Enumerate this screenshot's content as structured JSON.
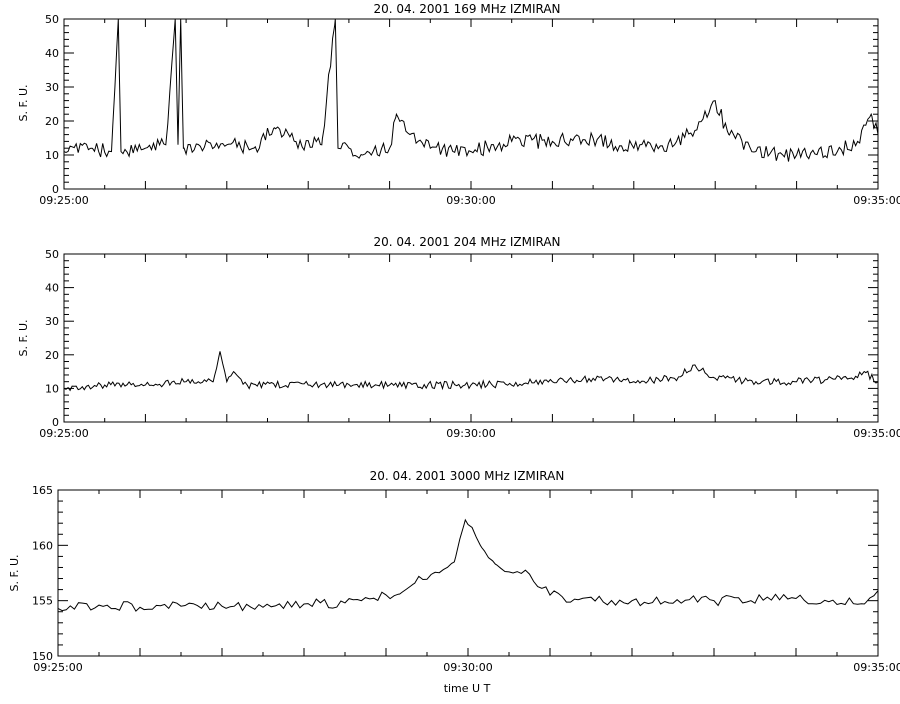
{
  "xlabel": "time  U T",
  "chart_data": [
    {
      "type": "line",
      "title": "20.  04.  2001    169  MHz     IZMIRAN",
      "ylabel": "S. F. U.",
      "xlim": [
        "09:25:00",
        "09:35:00"
      ],
      "ylim": [
        0,
        50
      ],
      "x_ticklabels": [
        "09:25:00",
        "09:30:00",
        "09:35:00"
      ],
      "y_ticklabels": [
        "0",
        "10",
        "20",
        "30",
        "40",
        "50"
      ],
      "grid": false,
      "series": [
        {
          "values": [
            {
              "t": "09:25:00",
              "y": 11
            },
            {
              "t": "09:25:20",
              "y": 12
            },
            {
              "t": "09:25:35",
              "y": 11
            },
            {
              "t": "09:25:40",
              "y": 50
            },
            {
              "t": "09:25:42",
              "y": 11
            },
            {
              "t": "09:26:00",
              "y": 12
            },
            {
              "t": "09:26:15",
              "y": 13
            },
            {
              "t": "09:26:22",
              "y": 50
            },
            {
              "t": "09:26:24",
              "y": 13
            },
            {
              "t": "09:26:26",
              "y": 50
            },
            {
              "t": "09:26:28",
              "y": 12
            },
            {
              "t": "09:27:00",
              "y": 13
            },
            {
              "t": "09:27:20",
              "y": 12
            },
            {
              "t": "09:27:35",
              "y": 18
            },
            {
              "t": "09:27:50",
              "y": 14
            },
            {
              "t": "09:28:10",
              "y": 13
            },
            {
              "t": "09:28:20",
              "y": 50
            },
            {
              "t": "09:28:22",
              "y": 12
            },
            {
              "t": "09:28:40",
              "y": 10
            },
            {
              "t": "09:29:00",
              "y": 12
            },
            {
              "t": "09:29:05",
              "y": 22
            },
            {
              "t": "09:29:12",
              "y": 17
            },
            {
              "t": "09:29:30",
              "y": 12
            },
            {
              "t": "09:30:00",
              "y": 11
            },
            {
              "t": "09:30:30",
              "y": 14
            },
            {
              "t": "09:31:00",
              "y": 14
            },
            {
              "t": "09:31:30",
              "y": 15
            },
            {
              "t": "09:32:00",
              "y": 12
            },
            {
              "t": "09:32:30",
              "y": 13
            },
            {
              "t": "09:32:50",
              "y": 20
            },
            {
              "t": "09:33:00",
              "y": 26
            },
            {
              "t": "09:33:10",
              "y": 16
            },
            {
              "t": "09:33:30",
              "y": 11
            },
            {
              "t": "09:34:00",
              "y": 10
            },
            {
              "t": "09:34:30",
              "y": 11
            },
            {
              "t": "09:34:45",
              "y": 14
            },
            {
              "t": "09:34:55",
              "y": 22
            },
            {
              "t": "09:35:00",
              "y": 16
            }
          ]
        }
      ]
    },
    {
      "type": "line",
      "title": "20.  04.  2001    204  MHz     IZMIRAN",
      "ylabel": "S. F. U.",
      "xlim": [
        "09:25:00",
        "09:35:00"
      ],
      "ylim": [
        0,
        50
      ],
      "x_ticklabels": [
        "09:25:00",
        "09:30:00",
        "09:35:00"
      ],
      "y_ticklabels": [
        "0",
        "10",
        "20",
        "30",
        "40",
        "50"
      ],
      "grid": false,
      "series": [
        {
          "values": [
            {
              "t": "09:25:00",
              "y": 10
            },
            {
              "t": "09:25:30",
              "y": 11
            },
            {
              "t": "09:26:00",
              "y": 11
            },
            {
              "t": "09:26:30",
              "y": 12
            },
            {
              "t": "09:26:50",
              "y": 12
            },
            {
              "t": "09:26:55",
              "y": 21
            },
            {
              "t": "09:27:00",
              "y": 12
            },
            {
              "t": "09:27:05",
              "y": 15
            },
            {
              "t": "09:27:15",
              "y": 11
            },
            {
              "t": "09:28:00",
              "y": 11
            },
            {
              "t": "09:29:00",
              "y": 11
            },
            {
              "t": "09:30:00",
              "y": 11
            },
            {
              "t": "09:31:00",
              "y": 12
            },
            {
              "t": "09:31:30",
              "y": 13
            },
            {
              "t": "09:32:00",
              "y": 12
            },
            {
              "t": "09:32:30",
              "y": 13
            },
            {
              "t": "09:32:45",
              "y": 17
            },
            {
              "t": "09:33:00",
              "y": 13
            },
            {
              "t": "09:33:30",
              "y": 12
            },
            {
              "t": "09:34:00",
              "y": 12
            },
            {
              "t": "09:34:40",
              "y": 13
            },
            {
              "t": "09:34:50",
              "y": 15
            },
            {
              "t": "09:35:00",
              "y": 12
            }
          ]
        }
      ]
    },
    {
      "type": "line",
      "title": "20.  04.  2001    3000  MHz     IZMIRAN",
      "ylabel": "S. F. U.",
      "xlim": [
        "09:25:00",
        "09:35:00"
      ],
      "ylim": [
        150,
        165
      ],
      "x_ticklabels": [
        "09:25:00",
        "09:30:00",
        "09:35:00"
      ],
      "y_ticklabels": [
        "150",
        "155",
        "160",
        "165"
      ],
      "grid": false,
      "series": [
        {
          "values": [
            {
              "t": "09:25:00",
              "y": 154.3
            },
            {
              "t": "09:25:30",
              "y": 154.6
            },
            {
              "t": "09:26:00",
              "y": 154.4
            },
            {
              "t": "09:26:30",
              "y": 154.5
            },
            {
              "t": "09:27:00",
              "y": 154.5
            },
            {
              "t": "09:27:30",
              "y": 154.4
            },
            {
              "t": "09:28:00",
              "y": 154.7
            },
            {
              "t": "09:28:30",
              "y": 154.8
            },
            {
              "t": "09:28:50",
              "y": 155.2
            },
            {
              "t": "09:29:10",
              "y": 155.6
            },
            {
              "t": "09:29:20",
              "y": 156.5
            },
            {
              "t": "09:29:35",
              "y": 157.5
            },
            {
              "t": "09:29:50",
              "y": 158.5
            },
            {
              "t": "09:29:58",
              "y": 162.3
            },
            {
              "t": "09:30:10",
              "y": 159.8
            },
            {
              "t": "09:30:20",
              "y": 158.3
            },
            {
              "t": "09:30:30",
              "y": 157.6
            },
            {
              "t": "09:30:45",
              "y": 157.4
            },
            {
              "t": "09:31:00",
              "y": 155.5
            },
            {
              "t": "09:31:20",
              "y": 155.1
            },
            {
              "t": "09:32:00",
              "y": 155.0
            },
            {
              "t": "09:33:00",
              "y": 155.0
            },
            {
              "t": "09:34:00",
              "y": 155.2
            },
            {
              "t": "09:34:50",
              "y": 154.7
            },
            {
              "t": "09:35:00",
              "y": 155.9
            }
          ]
        }
      ]
    }
  ]
}
